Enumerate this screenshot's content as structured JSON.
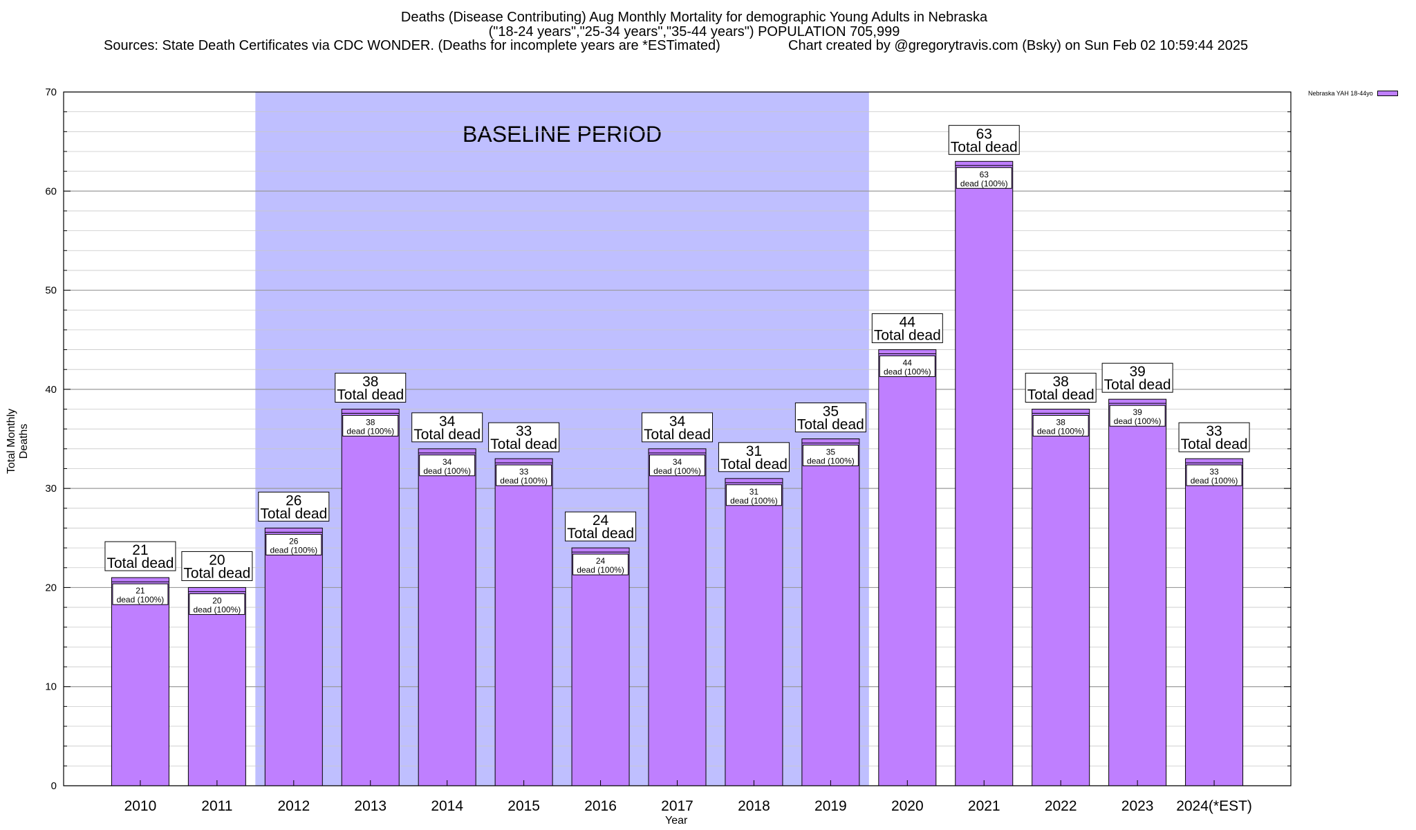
{
  "title": {
    "line1": "Deaths (Disease Contributing) Aug Monthly Mortality for demographic Young Adults in Nebraska",
    "line2": "(\"18-24 years\",\"25-34 years\",\"35-44 years\") POPULATION 705,999",
    "line3": "Sources: State Death Certificates via CDC WONDER. (Deaths for incomplete years are *ESTimated)",
    "line4": "Chart created by @gregorytravis.com (Bsky) on Sun Feb 02 10:59:44 2025"
  },
  "legend": {
    "label": "Nebraska YAH 18-44yo",
    "color": "#bf7fff"
  },
  "colors": {
    "bar": "#bf7fff",
    "baseline": "#bfbfff",
    "label_bg": "#ffffff"
  },
  "chart_data": {
    "type": "bar",
    "title": "Deaths (Disease Contributing) Aug Monthly Mortality for demographic Young Adults in Nebraska",
    "xlabel": "Year",
    "ylabel": "Total Monthly Deaths",
    "ylim": [
      0,
      70
    ],
    "yticks": [
      0,
      10,
      20,
      30,
      40,
      50,
      60,
      70
    ],
    "grid": true,
    "legend_position": "top-right",
    "categories": [
      "2010",
      "2011",
      "2012",
      "2013",
      "2014",
      "2015",
      "2016",
      "2017",
      "2018",
      "2019",
      "2020",
      "2021",
      "2022",
      "2023",
      "2024(*EST)"
    ],
    "series": [
      {
        "name": "Nebraska YAH 18-44yo",
        "values": [
          21,
          20,
          26,
          38,
          34,
          33,
          24,
          34,
          31,
          35,
          44,
          63,
          38,
          39,
          33
        ]
      }
    ],
    "total_label_suffix": "Total dead",
    "inner_label_suffix": "dead (100%)",
    "baseline": {
      "label": "BASELINE PERIOD",
      "from": "2012",
      "to": "2019"
    }
  }
}
